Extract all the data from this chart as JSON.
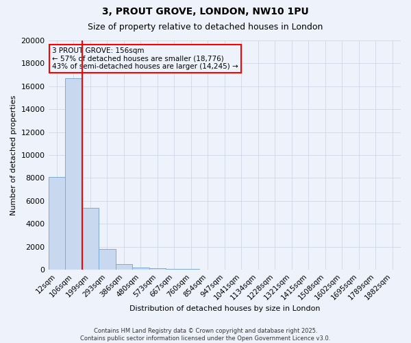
{
  "title": "3, PROUT GROVE, LONDON, NW10 1PU",
  "subtitle": "Size of property relative to detached houses in London",
  "xlabel": "Distribution of detached houses by size in London",
  "ylabel": "Number of detached properties",
  "bar_color": "#c8d8ee",
  "bar_edge_color": "#7aaadc",
  "background_color": "#eef2fb",
  "annotation_line1": "3 PROUT GROVE: 156sqm",
  "annotation_line2": "← 57% of detached houses are smaller (18,776)",
  "annotation_line3": "43% of semi-detached houses are larger (14,245) →",
  "vline_color": "red",
  "annotation_box_color": "red",
  "categories": [
    "12sqm",
    "106sqm",
    "199sqm",
    "293sqm",
    "386sqm",
    "480sqm",
    "573sqm",
    "667sqm",
    "760sqm",
    "854sqm",
    "947sqm",
    "1041sqm",
    "1134sqm",
    "1228sqm",
    "1321sqm",
    "1415sqm",
    "1508sqm",
    "1602sqm",
    "1695sqm",
    "1789sqm",
    "1882sqm"
  ],
  "values": [
    8100,
    16700,
    5400,
    1800,
    500,
    200,
    130,
    80,
    50,
    0,
    0,
    0,
    0,
    0,
    0,
    0,
    0,
    0,
    0,
    0,
    0
  ],
  "ylim": [
    0,
    20000
  ],
  "yticks": [
    0,
    2000,
    4000,
    6000,
    8000,
    10000,
    12000,
    14000,
    16000,
    18000,
    20000
  ],
  "footnote_line1": "Contains HM Land Registry data © Crown copyright and database right 2025.",
  "footnote_line2": "Contains public sector information licensed under the Open Government Licence v3.0.",
  "grid_color": "#c8d0e0"
}
